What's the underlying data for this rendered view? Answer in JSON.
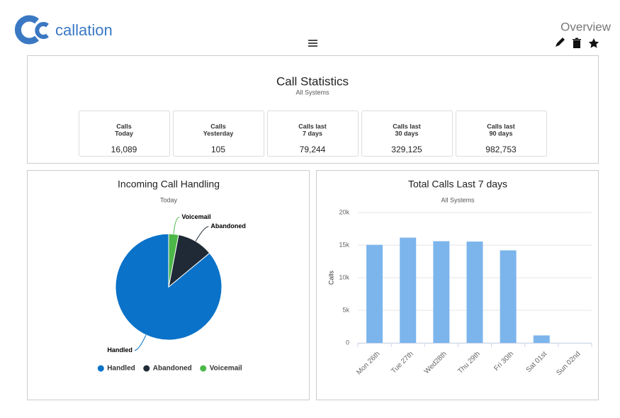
{
  "header": {
    "logo": "callation",
    "title": "Overview"
  },
  "stats": {
    "title": "Call Statistics",
    "subtitle": "All Systems",
    "cards": [
      {
        "label": [
          "Calls",
          "Today"
        ],
        "value": "16,089"
      },
      {
        "label": [
          "Calls",
          "Yesterday"
        ],
        "value": "105"
      },
      {
        "label": [
          "Calls last",
          "7 days"
        ],
        "value": "79,244"
      },
      {
        "label": [
          "Calls last",
          "30 days"
        ],
        "value": "329,125"
      },
      {
        "label": [
          "Calls last",
          "90 days"
        ],
        "value": "982,753"
      }
    ]
  },
  "chart_data": [
    {
      "type": "pie",
      "title": "Incoming Call Handling",
      "subtitle": "Today",
      "categories": [
        "Handled",
        "Abandoned",
        "Voicemail"
      ],
      "values": [
        86,
        11,
        3
      ],
      "colors": [
        "#0a72c8",
        "#1f2a36",
        "#4cb848"
      ],
      "legend": "bottom"
    },
    {
      "type": "bar",
      "title": "Total Calls Last 7 days",
      "subtitle": "All Systems",
      "y_label": "Calls",
      "categories": [
        "Mon 26th",
        "Tue 27th",
        "Wed28th",
        "Thu 29th",
        "Fri 30th",
        "Sat 01st",
        "Sun 02nd"
      ],
      "values": [
        15050,
        16150,
        15600,
        15550,
        14200,
        1150,
        0
      ],
      "color": "#7cb5ec",
      "ylim": [
        0,
        20000
      ],
      "yticks": [
        0,
        {
          "value": 5000,
          "label": "5k"
        },
        {
          "value": 10000,
          "label": "10k"
        },
        {
          "value": 15000,
          "label": "15k"
        },
        {
          "value": 20000,
          "label": "20k"
        }
      ],
      "grid": true
    }
  ]
}
